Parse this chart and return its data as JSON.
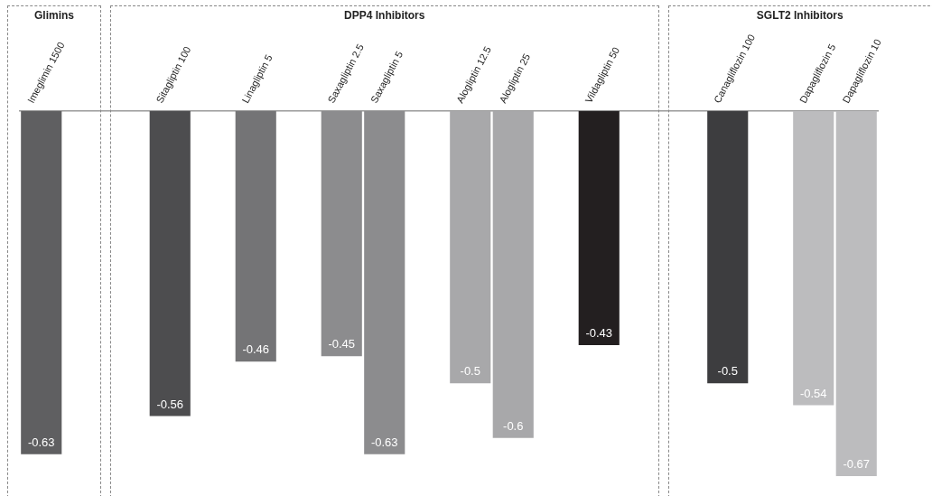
{
  "chart_data": {
    "type": "bar",
    "categories": [
      "Imeglimin 1500",
      null,
      null,
      "Sitagliptin 100",
      null,
      "Linagliptin 5",
      null,
      "Saxagliptin 2.5",
      "Saxagliptin 5",
      null,
      "Alogliptin 12.5",
      "Alogliptin 25",
      null,
      "Vildagliptin 50",
      null,
      null,
      "Canagliflozin 100",
      null,
      "Dapagliflozin 5",
      "Dapagliflozin 10"
    ],
    "values": [
      -0.63,
      null,
      null,
      -0.56,
      null,
      -0.46,
      null,
      -0.45,
      -0.63,
      null,
      -0.5,
      -0.6,
      null,
      -0.43,
      null,
      null,
      -0.5,
      null,
      -0.54,
      -0.67
    ],
    "colors": [
      "#5f5f61",
      null,
      null,
      "#4d4d4f",
      null,
      "#747476",
      null,
      "#8c8c8e",
      "#8c8c8e",
      null,
      "#a8a8aa",
      "#a8a8aa",
      null,
      "#231f20",
      null,
      null,
      "#3d3d3f",
      null,
      "#bcbcbe",
      "#bcbcbe"
    ],
    "data_labels": true,
    "annotations": [
      "Glimins",
      "DPP4 Inhibitors",
      "SGLT2 Inhibitors"
    ],
    "grid": false,
    "legend": false
  }
}
